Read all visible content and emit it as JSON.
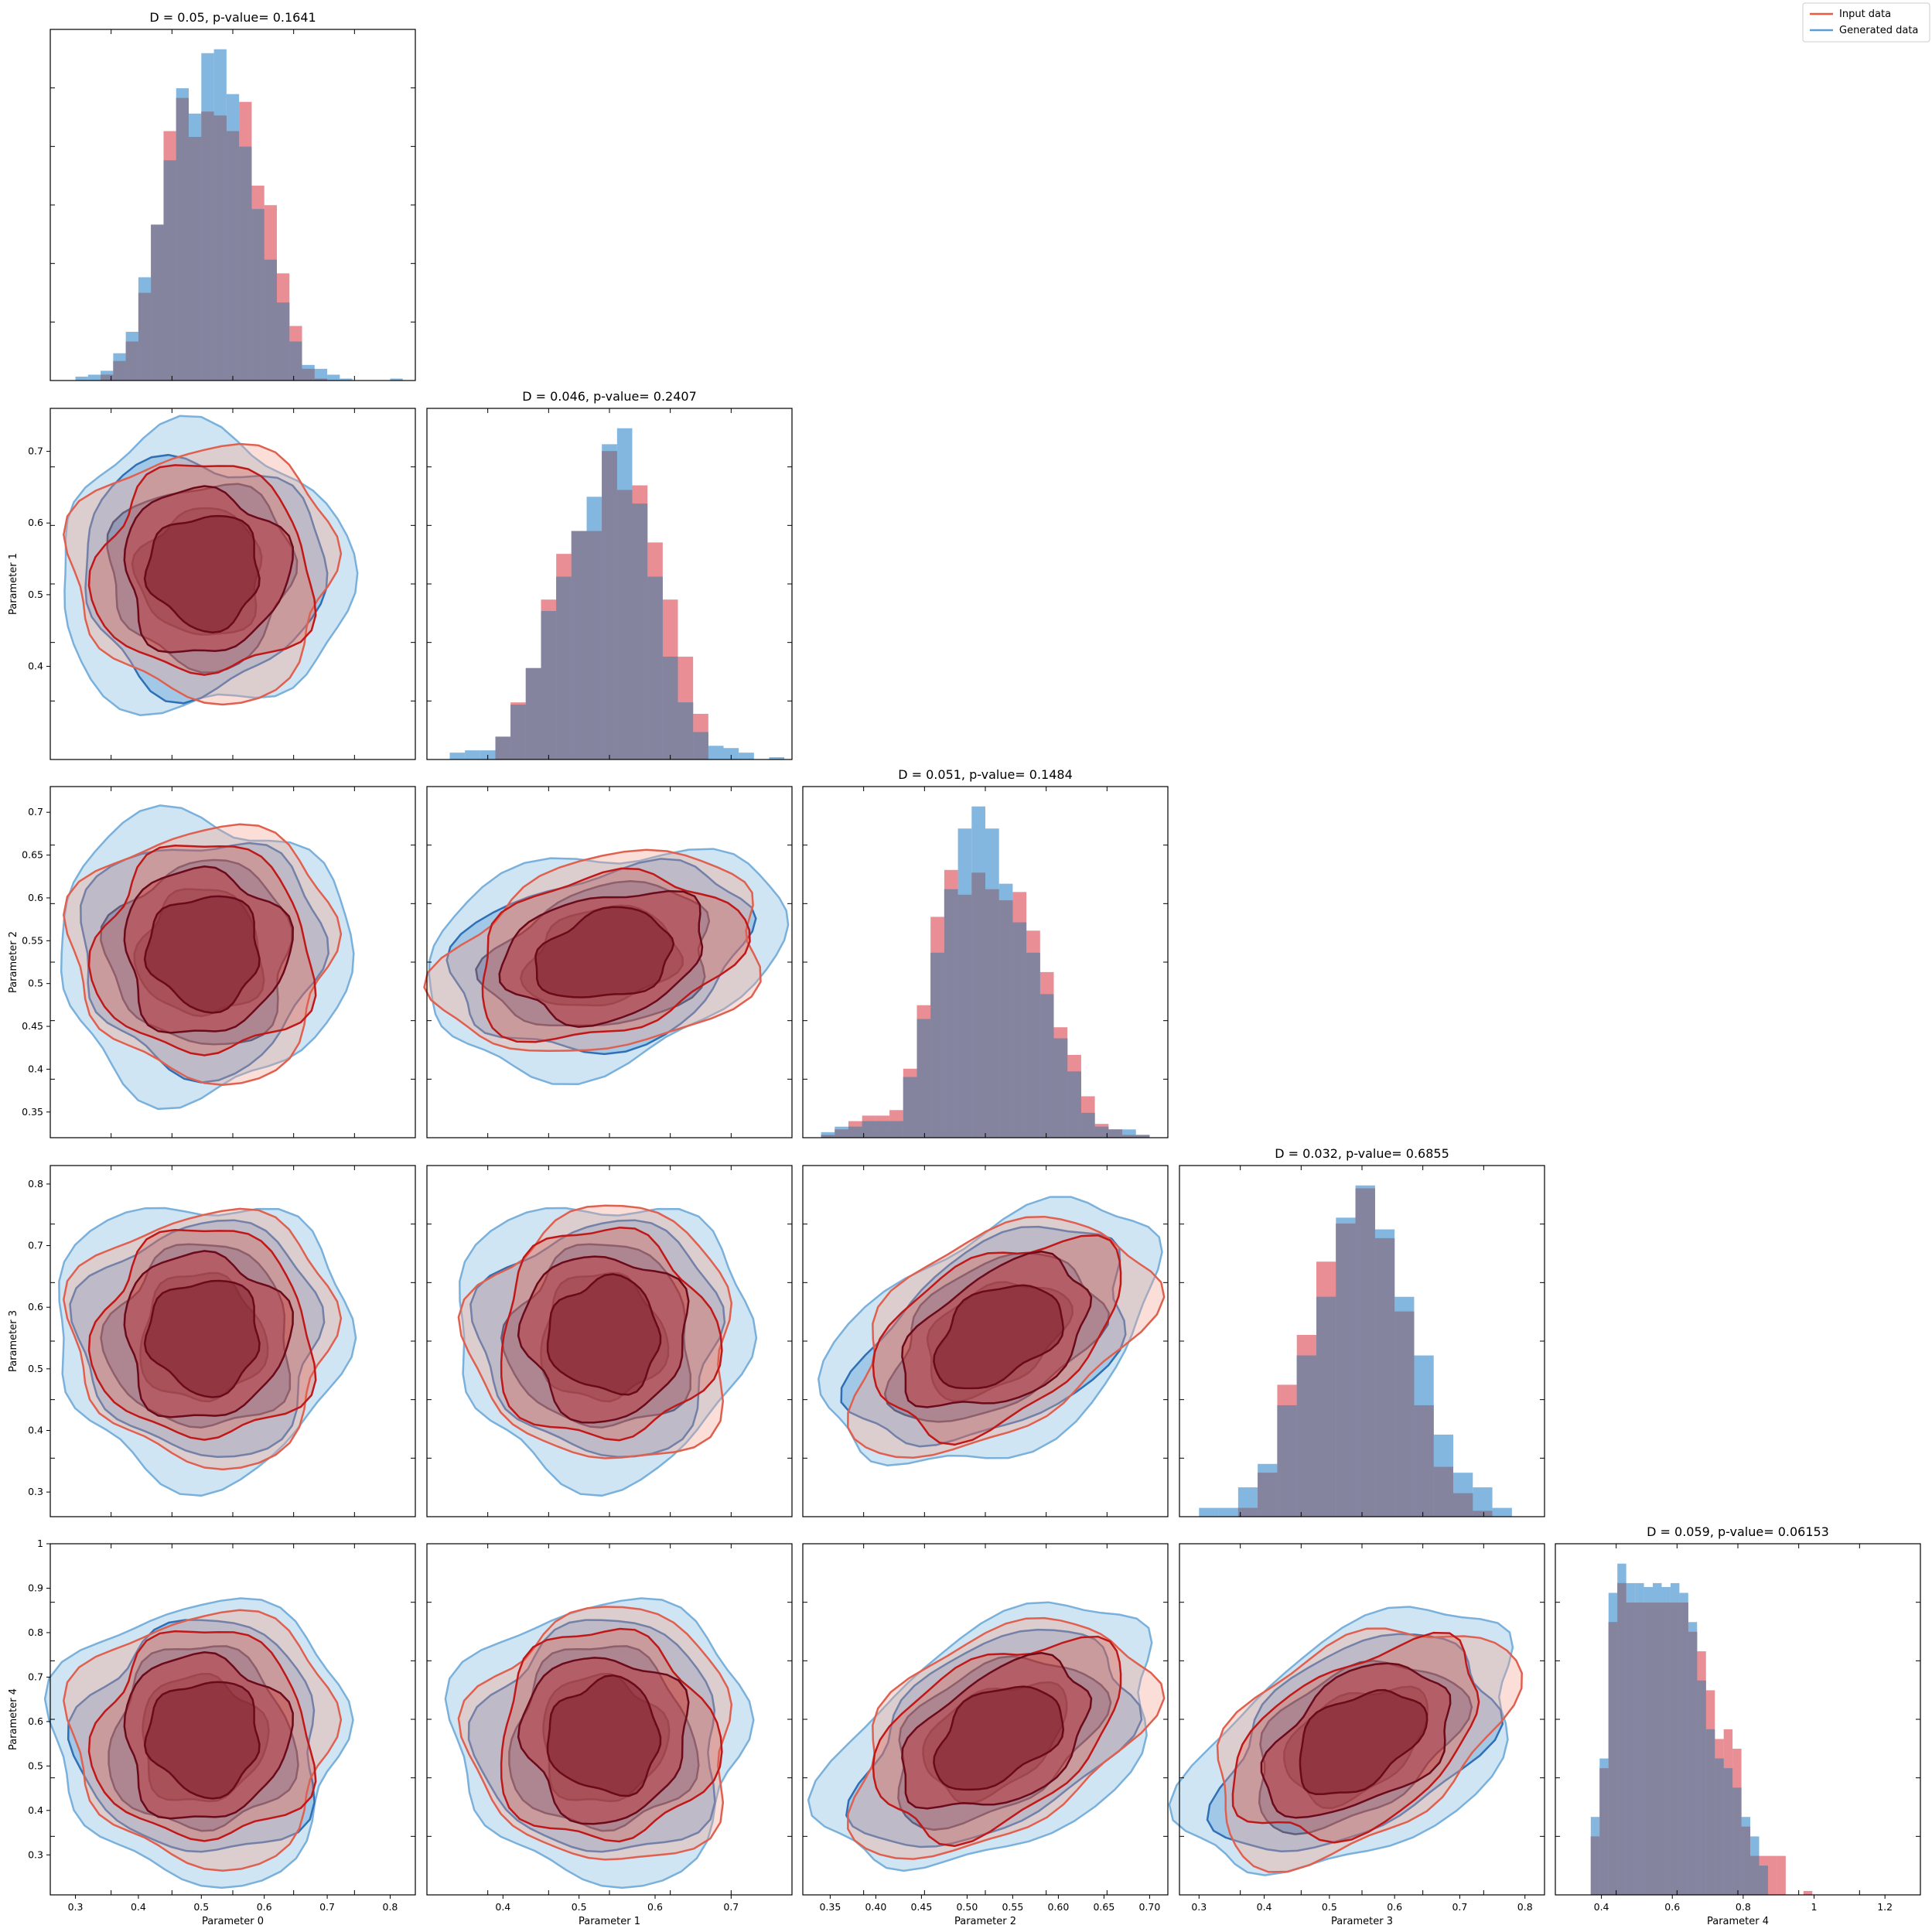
{
  "figure": {
    "legend": {
      "placement": "top-right",
      "entries": [
        {
          "label": "Input data",
          "color": "#f05a3c"
        },
        {
          "label": "Generated data",
          "color": "#5a9fd4"
        }
      ]
    },
    "colors": {
      "input_hist": "#e06870",
      "generated_hist": "#5a9fd4",
      "overlap_hist": "#84849e",
      "input_contour_levels": [
        "#f4a08c",
        "#e06050",
        "#c01818",
        "#6a0a1a"
      ],
      "generated_contour_levels": [
        "#a9d0ea",
        "#7ab1dc",
        "#2f6fb5",
        "#163a6e"
      ]
    }
  },
  "chart_data": [
    {
      "type": "histogram",
      "row": 0,
      "col": 0,
      "title": "D = 0.05, p-value= 0.1641",
      "xlabel": "",
      "ylabel": "",
      "xlim": [
        0.26,
        0.84
      ],
      "bins": [
        0.3,
        0.32,
        0.34,
        0.36,
        0.38,
        0.4,
        0.42,
        0.44,
        0.46,
        0.48,
        0.5,
        0.52,
        0.54,
        0.56,
        0.58,
        0.6,
        0.62,
        0.64,
        0.66,
        0.68,
        0.7,
        0.72,
        0.74,
        0.76,
        0.78,
        0.8,
        0.82
      ],
      "series": [
        {
          "name": "Input data",
          "values": [
            0,
            0,
            3,
            10,
            20,
            45,
            80,
            128,
            145,
            125,
            138,
            136,
            128,
            143,
            100,
            90,
            55,
            28,
            6,
            1,
            0,
            0,
            0,
            0,
            0,
            0
          ]
        },
        {
          "name": "Generated data",
          "values": [
            2,
            3,
            5,
            14,
            25,
            53,
            80,
            113,
            150,
            137,
            168,
            170,
            147,
            120,
            88,
            62,
            40,
            20,
            8,
            6,
            3,
            1,
            0,
            0,
            0,
            1
          ]
        }
      ]
    },
    {
      "type": "contour",
      "row": 1,
      "col": 0,
      "xlabel": "",
      "ylabel": "Parameter 1",
      "xlim": [
        0.26,
        0.84
      ],
      "ylim": [
        0.27,
        0.76
      ],
      "yticks": [
        0.4,
        0.5,
        0.6,
        0.7
      ],
      "center": [
        0.5,
        0.53
      ]
    },
    {
      "type": "histogram",
      "row": 1,
      "col": 1,
      "title": "D = 0.046, p-value= 0.2407",
      "xlabel": "",
      "ylabel": "",
      "xlim": [
        0.3,
        0.78
      ],
      "bins": [
        0.33,
        0.35,
        0.37,
        0.39,
        0.41,
        0.43,
        0.45,
        0.47,
        0.49,
        0.51,
        0.53,
        0.55,
        0.57,
        0.59,
        0.61,
        0.63,
        0.65,
        0.67,
        0.69,
        0.71,
        0.73,
        0.75,
        0.77
      ],
      "series": [
        {
          "name": "Input data",
          "values": [
            0,
            0,
            0,
            10,
            25,
            40,
            70,
            90,
            100,
            100,
            135,
            118,
            120,
            95,
            70,
            45,
            20,
            0,
            0,
            0,
            0,
            0
          ]
        },
        {
          "name": "Generated data",
          "values": [
            3,
            4,
            4,
            10,
            24,
            40,
            65,
            80,
            100,
            115,
            138,
            145,
            112,
            80,
            45,
            25,
            12,
            6,
            5,
            3,
            0,
            1
          ]
        }
      ]
    },
    {
      "type": "contour",
      "row": 2,
      "col": 0,
      "xlabel": "",
      "ylabel": "Parameter 2",
      "xlim": [
        0.26,
        0.84
      ],
      "ylim": [
        0.32,
        0.73
      ],
      "yticks": [
        0.35,
        0.4,
        0.45,
        0.5,
        0.55,
        0.6,
        0.65,
        0.7
      ],
      "center": [
        0.5,
        0.535
      ]
    },
    {
      "type": "contour",
      "row": 2,
      "col": 1,
      "xlabel": "",
      "ylabel": "",
      "xlim": [
        0.3,
        0.78
      ],
      "ylim": [
        0.32,
        0.73
      ],
      "center": [
        0.53,
        0.53
      ]
    },
    {
      "type": "histogram",
      "row": 2,
      "col": 2,
      "title": "D = 0.051, p-value= 0.1484",
      "xlabel": "",
      "ylabel": "",
      "xlim": [
        0.32,
        0.72
      ],
      "bins": [
        0.34,
        0.355,
        0.37,
        0.385,
        0.4,
        0.415,
        0.43,
        0.445,
        0.46,
        0.475,
        0.49,
        0.505,
        0.52,
        0.535,
        0.55,
        0.565,
        0.58,
        0.595,
        0.61,
        0.625,
        0.64,
        0.655,
        0.67,
        0.685,
        0.7
      ],
      "series": [
        {
          "name": "Input data",
          "values": [
            1,
            3,
            6,
            8,
            8,
            10,
            25,
            48,
            80,
            97,
            88,
            96,
            90,
            86,
            89,
            75,
            60,
            40,
            30,
            15,
            5,
            3,
            1,
            1
          ]
        },
        {
          "name": "Generated data",
          "values": [
            2,
            4,
            4,
            6,
            6,
            6,
            22,
            43,
            67,
            90,
            112,
            120,
            112,
            92,
            78,
            67,
            52,
            36,
            24,
            9,
            4,
            3,
            3,
            1
          ]
        }
      ]
    },
    {
      "type": "contour",
      "row": 3,
      "col": 0,
      "xlabel": "",
      "ylabel": "Parameter 3",
      "xlim": [
        0.26,
        0.84
      ],
      "ylim": [
        0.26,
        0.83
      ],
      "yticks": [
        0.3,
        0.4,
        0.5,
        0.6,
        0.7,
        0.8
      ],
      "center": [
        0.5,
        0.55
      ]
    },
    {
      "type": "contour",
      "row": 3,
      "col": 1,
      "xlabel": "",
      "ylabel": "",
      "xlim": [
        0.3,
        0.78
      ],
      "ylim": [
        0.26,
        0.83
      ],
      "center": [
        0.53,
        0.55
      ]
    },
    {
      "type": "contour",
      "row": 3,
      "col": 2,
      "xlabel": "",
      "ylabel": "",
      "xlim": [
        0.32,
        0.72
      ],
      "ylim": [
        0.26,
        0.83
      ],
      "center": [
        0.53,
        0.55
      ]
    },
    {
      "type": "histogram",
      "row": 3,
      "col": 3,
      "title": "D = 0.032, p-value= 0.6855",
      "xlabel": "",
      "ylabel": "",
      "xlim": [
        0.27,
        0.83
      ],
      "bins": [
        0.3,
        0.33,
        0.36,
        0.39,
        0.42,
        0.45,
        0.48,
        0.51,
        0.54,
        0.57,
        0.6,
        0.63,
        0.66,
        0.69,
        0.72,
        0.75,
        0.78,
        0.81
      ],
      "series": [
        {
          "name": "Input data",
          "values": [
            0,
            0,
            3,
            15,
            45,
            62,
            87,
            100,
            112,
            95,
            70,
            38,
            17,
            8,
            2,
            0,
            0
          ]
        },
        {
          "name": "Generated data",
          "values": [
            3,
            3,
            10,
            18,
            38,
            55,
            75,
            102,
            113,
            98,
            75,
            55,
            28,
            15,
            10,
            3,
            0
          ]
        }
      ]
    },
    {
      "type": "contour",
      "row": 4,
      "col": 0,
      "xlabel": "Parameter 0",
      "ylabel": "Parameter 4",
      "xlim": [
        0.26,
        0.84
      ],
      "ylim": [
        0.21,
        1.0
      ],
      "xticks": [
        0.3,
        0.4,
        0.5,
        0.6,
        0.7,
        0.8
      ],
      "yticks": [
        0.3,
        0.4,
        0.5,
        0.6,
        0.7,
        0.8,
        0.9,
        1.0
      ],
      "center": [
        0.5,
        0.56
      ]
    },
    {
      "type": "contour",
      "row": 4,
      "col": 1,
      "xlabel": "Parameter 1",
      "ylabel": "",
      "xlim": [
        0.3,
        0.78
      ],
      "ylim": [
        0.21,
        1.0
      ],
      "xticks": [
        0.4,
        0.5,
        0.6,
        0.7
      ],
      "center": [
        0.53,
        0.56
      ]
    },
    {
      "type": "contour",
      "row": 4,
      "col": 2,
      "xlabel": "Parameter 2",
      "ylabel": "",
      "xlim": [
        0.32,
        0.72
      ],
      "ylim": [
        0.21,
        1.0
      ],
      "xticks": [
        0.35,
        0.4,
        0.45,
        0.5,
        0.55,
        0.6,
        0.65,
        0.7
      ],
      "xticklabels": [
        "0.35",
        "0.40",
        "0.45",
        "0.50",
        "0.55",
        "0.60",
        "0.65",
        "0.70"
      ],
      "center": [
        0.53,
        0.56
      ]
    },
    {
      "type": "contour",
      "row": 4,
      "col": 3,
      "xlabel": "Parameter 3",
      "ylabel": "",
      "xlim": [
        0.27,
        0.83
      ],
      "ylim": [
        0.21,
        1.0
      ],
      "xticks": [
        0.3,
        0.4,
        0.5,
        0.6,
        0.7,
        0.8
      ],
      "center": [
        0.54,
        0.55
      ]
    },
    {
      "type": "histogram",
      "row": 4,
      "col": 4,
      "title": "D = 0.059, p-value= 0.06153",
      "xlabel": "Parameter 4",
      "ylabel": "",
      "xlim": [
        0.27,
        1.3
      ],
      "xticks": [
        0.4,
        0.6,
        0.8,
        1.0,
        1.2
      ],
      "bins": [
        0.37,
        0.395,
        0.42,
        0.445,
        0.47,
        0.495,
        0.52,
        0.545,
        0.57,
        0.595,
        0.62,
        0.645,
        0.67,
        0.695,
        0.72,
        0.745,
        0.77,
        0.795,
        0.82,
        0.845,
        0.87,
        0.895,
        0.92,
        0.945,
        0.97,
        0.995
      ],
      "series": [
        {
          "name": "Input data",
          "values": [
            30,
            65,
            140,
            160,
            150,
            150,
            150,
            150,
            150,
            150,
            150,
            135,
            125,
            105,
            80,
            85,
            75,
            35,
            20,
            20,
            20,
            20,
            0,
            0,
            2
          ]
        },
        {
          "name": "Generated data",
          "values": [
            40,
            70,
            155,
            170,
            160,
            160,
            158,
            160,
            158,
            160,
            155,
            140,
            110,
            85,
            70,
            65,
            55,
            40,
            30,
            15,
            0,
            0,
            0,
            0,
            0
          ]
        }
      ]
    }
  ]
}
